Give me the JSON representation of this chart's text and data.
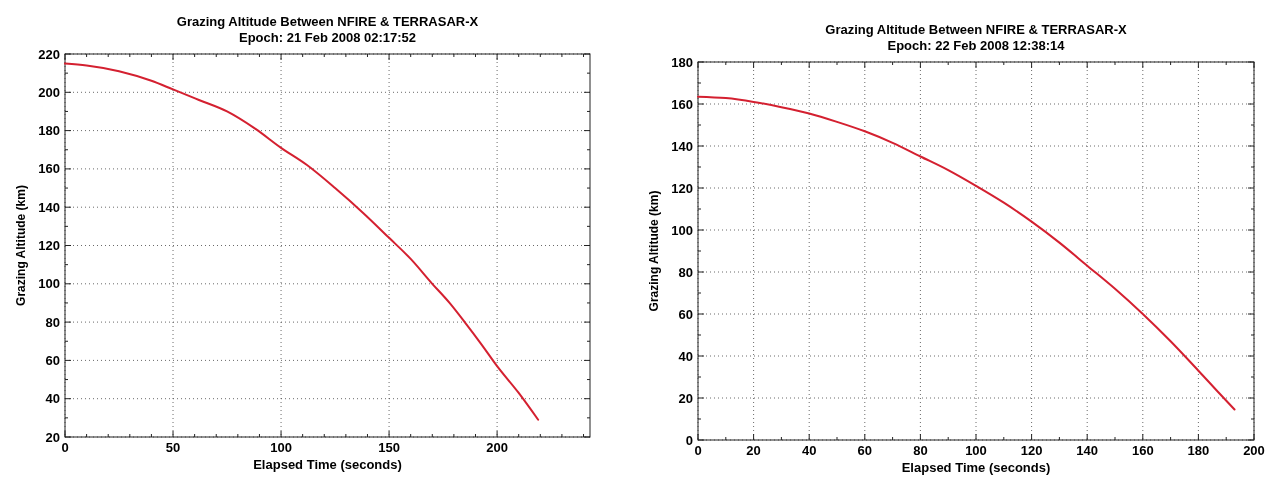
{
  "chart_data": [
    {
      "type": "line",
      "title": "Grazing Altitude Between NFIRE & TERRASAR-X",
      "subtitle": "Epoch: 21 Feb 2008 02:17:52",
      "xlabel": "Elapsed Time (seconds)",
      "ylabel": "Grazing Altitude (km)",
      "series": [
        {
          "color": "#d42030",
          "x": [
            0,
            10,
            25,
            40,
            50,
            62,
            75,
            88,
            100,
            112,
            125,
            138,
            150,
            160,
            170,
            178,
            185,
            193,
            200,
            210,
            219
          ],
          "values": [
            215,
            214,
            211,
            206,
            201.5,
            196,
            190,
            181,
            171,
            162,
            150,
            137,
            124,
            113,
            100,
            90,
            80,
            68,
            57,
            43,
            29
          ]
        }
      ],
      "xlim": [
        0,
        243
      ],
      "ylim": [
        20,
        220
      ],
      "xticks": [
        0,
        {
          "value": 10,
          "label": null
        },
        {
          "value": 20,
          "label": null
        },
        {
          "value": 30,
          "label": null
        },
        {
          "value": 40,
          "label": null
        },
        50,
        {
          "value": 60,
          "label": null
        },
        {
          "value": 70,
          "label": null
        },
        {
          "value": 80,
          "label": null
        },
        {
          "value": 90,
          "label": null
        },
        100,
        {
          "value": 110,
          "label": null
        },
        {
          "value": 120,
          "label": null
        },
        {
          "value": 130,
          "label": null
        },
        {
          "value": 140,
          "label": null
        },
        150,
        {
          "value": 160,
          "label": null
        },
        {
          "value": 170,
          "label": null
        },
        {
          "value": 180,
          "label": null
        },
        {
          "value": 190,
          "label": null
        },
        200,
        {
          "value": 210,
          "label": null
        },
        {
          "value": 220,
          "label": null
        },
        {
          "value": 230,
          "label": null
        },
        {
          "value": 240,
          "label": null
        }
      ],
      "yticks": [
        20,
        {
          "value": 30,
          "label": null
        },
        40,
        {
          "value": 50,
          "label": null
        },
        60,
        {
          "value": 70,
          "label": null
        },
        80,
        {
          "value": 90,
          "label": null
        },
        100,
        {
          "value": 110,
          "label": null
        },
        120,
        {
          "value": 130,
          "label": null
        },
        140,
        {
          "value": 150,
          "label": null
        },
        160,
        {
          "value": 170,
          "label": null
        },
        180,
        {
          "value": 190,
          "label": null
        },
        200,
        {
          "value": 210,
          "label": null
        },
        220
      ],
      "grid": true,
      "line_style": "solid",
      "marker": "none"
    },
    {
      "type": "line",
      "title": "Grazing Altitude Between NFIRE & TERRASAR-X",
      "subtitle": "Epoch: 22 Feb 2008 12:38:14",
      "xlabel": "Elapsed Time (seconds)",
      "ylabel": "Grazing Altitude (km)",
      "series": [
        {
          "color": "#d42030",
          "x": [
            0,
            10,
            20,
            30,
            40,
            50,
            60,
            70,
            80,
            90,
            100,
            110,
            120,
            130,
            140,
            150,
            160,
            170,
            180,
            187,
            193
          ],
          "values": [
            163.5,
            162.8,
            161,
            158.5,
            155.5,
            151.5,
            147,
            141.5,
            135,
            128.5,
            121,
            113,
            104,
            94,
            83,
            72,
            60,
            47,
            33,
            23,
            14.5
          ]
        }
      ],
      "xlim": [
        0,
        200
      ],
      "ylim": [
        0,
        180
      ],
      "xticks": [
        0,
        {
          "value": 10,
          "label": null
        },
        20,
        {
          "value": 30,
          "label": null
        },
        40,
        {
          "value": 50,
          "label": null
        },
        60,
        {
          "value": 70,
          "label": null
        },
        80,
        {
          "value": 90,
          "label": null
        },
        100,
        {
          "value": 110,
          "label": null
        },
        120,
        {
          "value": 130,
          "label": null
        },
        140,
        {
          "value": 150,
          "label": null
        },
        160,
        {
          "value": 170,
          "label": null
        },
        180,
        {
          "value": 190,
          "label": null
        },
        200
      ],
      "yticks": [
        0,
        {
          "value": 10,
          "label": null
        },
        20,
        {
          "value": 30,
          "label": null
        },
        40,
        {
          "value": 50,
          "label": null
        },
        60,
        {
          "value": 70,
          "label": null
        },
        80,
        {
          "value": 90,
          "label": null
        },
        100,
        {
          "value": 110,
          "label": null
        },
        120,
        {
          "value": 130,
          "label": null
        },
        140,
        {
          "value": 150,
          "label": null
        },
        160,
        {
          "value": 170,
          "label": null
        },
        180
      ],
      "grid": true,
      "line_style": "solid",
      "marker": "none"
    }
  ]
}
